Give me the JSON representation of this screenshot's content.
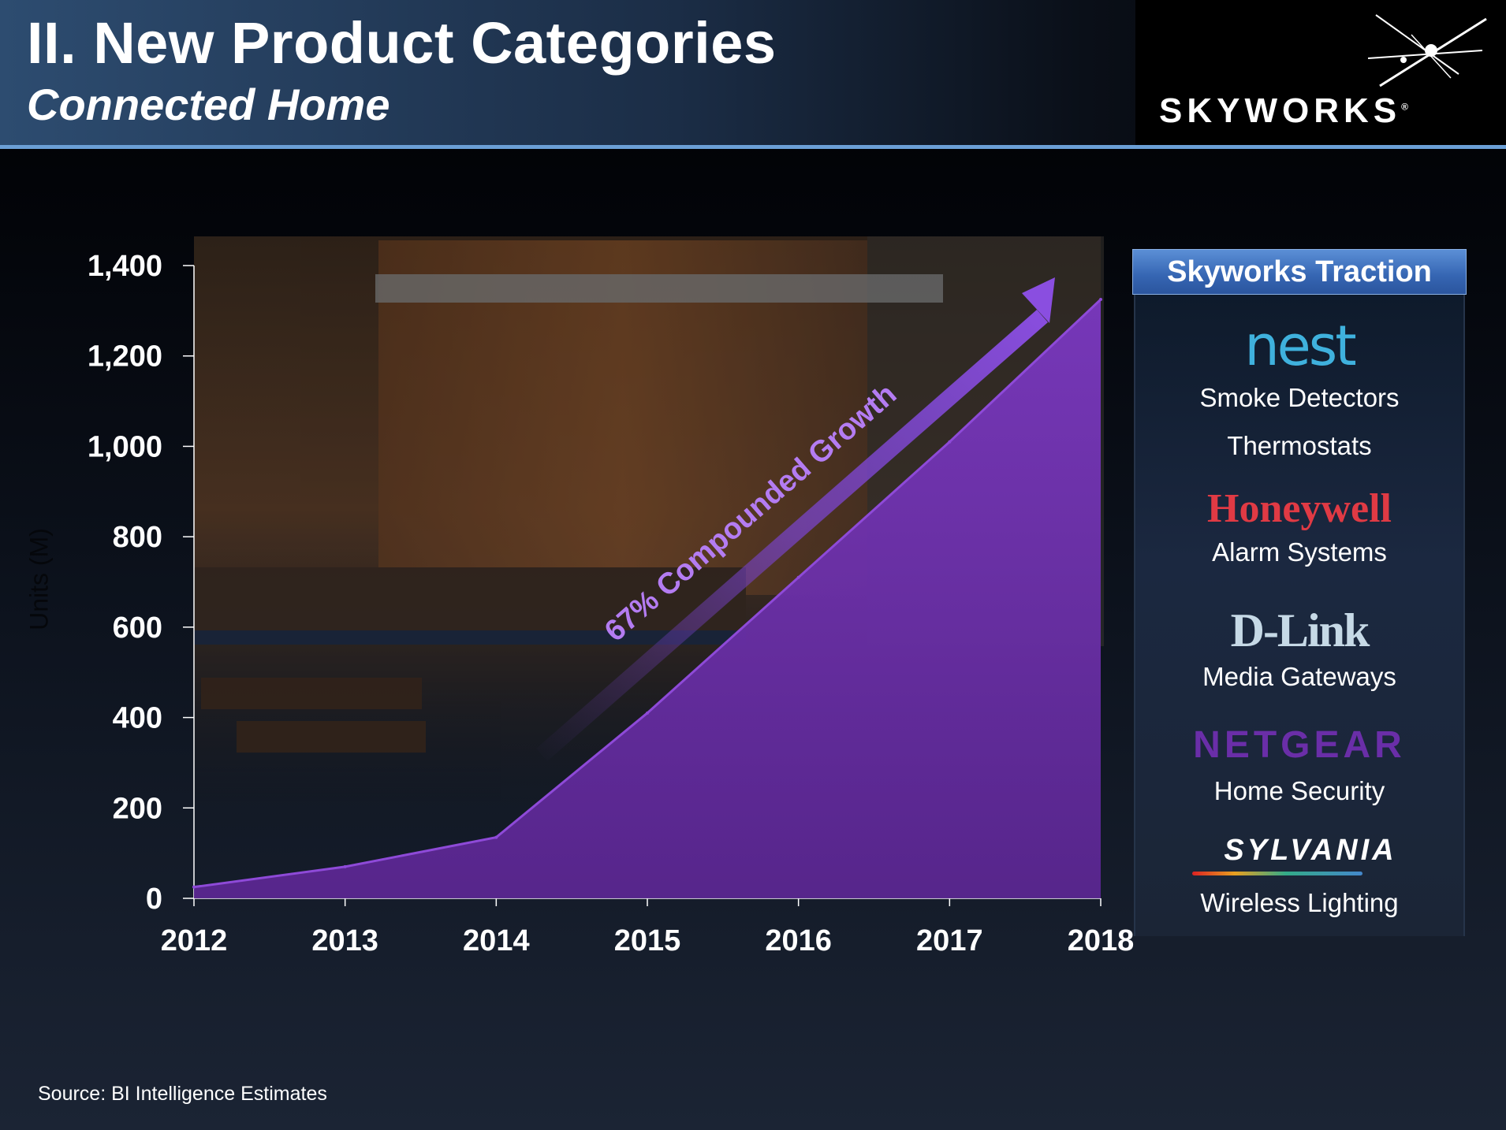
{
  "header": {
    "title": "II. New Product Categories",
    "subtitle": "Connected Home",
    "logo_text": "SKYWORKS"
  },
  "annotation": {
    "growth_label": "67% Compounded Growth"
  },
  "source": "Source:  BI Intelligence Estimates",
  "panel": {
    "title": "Skyworks Traction",
    "brands": [
      {
        "name": "nest",
        "captions": [
          "Smoke Detectors",
          "Thermostats"
        ]
      },
      {
        "name": "Honeywell",
        "captions": [
          "Alarm Systems"
        ]
      },
      {
        "name": "D-Link",
        "captions": [
          "Media Gateways"
        ]
      },
      {
        "name": "NETGEAR",
        "captions": [
          "Home Security"
        ]
      },
      {
        "name": "SYLVANIA",
        "captions": [
          "Wireless Lighting"
        ]
      }
    ]
  },
  "colors": {
    "area": "#6d2fad",
    "arrow": "#8a4ee0",
    "header_accent": "#6b9fd6"
  },
  "chart_data": {
    "type": "area",
    "title": "",
    "xlabel": "",
    "ylabel": "Units (M)",
    "x": [
      2012,
      2013,
      2014,
      2015,
      2016,
      2017,
      2018
    ],
    "y": [
      25,
      70,
      135,
      410,
      710,
      1010,
      1325
    ],
    "x_tick_labels": [
      "2012",
      "2013",
      "2014",
      "2015",
      "2016",
      "2017",
      "2018"
    ],
    "y_ticks": [
      0,
      200,
      400,
      600,
      800,
      1000,
      1200,
      1400
    ],
    "y_tick_labels": [
      "0",
      "200",
      "400",
      "600",
      "800",
      "1,000",
      "1,200",
      "1,400"
    ],
    "xlim": [
      2012,
      2018
    ],
    "ylim": [
      0,
      1400
    ],
    "grid": false,
    "legend": "none"
  }
}
